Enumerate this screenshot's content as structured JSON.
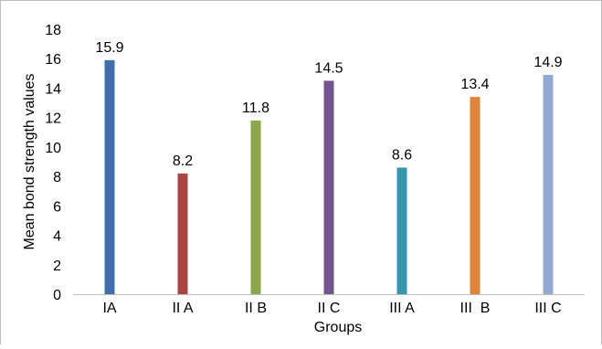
{
  "chart_data": {
    "type": "bar",
    "categories": [
      "IA",
      "II A",
      "II B",
      "II C",
      "III A",
      "III  B",
      "III C"
    ],
    "values": [
      15.9,
      8.2,
      11.8,
      14.5,
      8.6,
      13.4,
      14.9
    ],
    "data_labels": [
      "15.9",
      "8.2",
      "11.8",
      "14.5",
      "8.6",
      "13.4",
      "14.9"
    ],
    "colors": [
      "#3f6fa8",
      "#ab4544",
      "#8ba74a",
      "#715490",
      "#3797ae",
      "#e0843a",
      "#93aad5"
    ],
    "title": "",
    "xlabel": "Groups",
    "ylabel": "Mean bond strength values",
    "ylim": [
      0,
      18
    ],
    "yticks": [
      0,
      2,
      4,
      6,
      8,
      10,
      12,
      14,
      16,
      18
    ],
    "ytick_labels": [
      "0",
      "2",
      "4",
      "6",
      "8",
      "10",
      "12",
      "14",
      "16",
      "18"
    ],
    "grid": false,
    "legend": "none"
  }
}
